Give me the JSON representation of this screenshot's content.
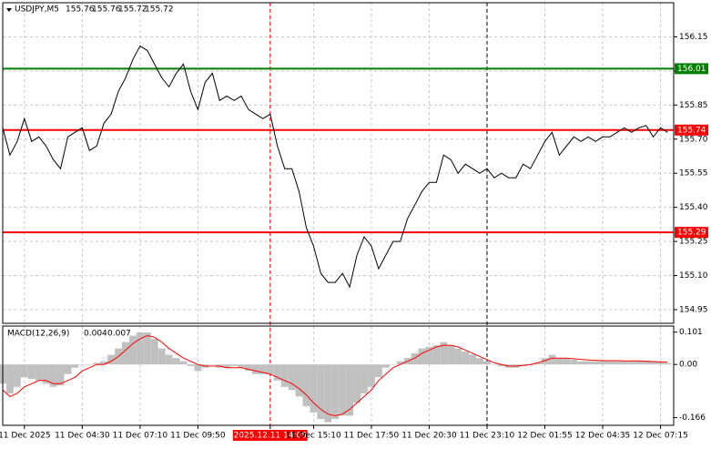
{
  "chart_data": [
    {
      "type": "line",
      "title": "USDJPY,M5",
      "ohlc": [
        155.76,
        155.76,
        155.72,
        155.72
      ],
      "color": "#000000",
      "categories": [
        null,
        null,
        null,
        "11 Dec 2025",
        null,
        null,
        null,
        null,
        null,
        null,
        null,
        "11 Dec 04:30",
        null,
        null,
        null,
        null,
        null,
        null,
        null,
        "11 Dec 07:10",
        null,
        null,
        null,
        null,
        null,
        null,
        null,
        "11 Dec 09:50",
        null,
        null,
        null,
        null,
        null,
        null,
        null,
        null,
        null,
        "2025.12.11 14:05",
        null,
        null,
        null,
        null,
        null,
        "11 Dec 15:10",
        null,
        null,
        null,
        null,
        null,
        null,
        null,
        "11 Dec 17:50",
        null,
        null,
        null,
        null,
        null,
        null,
        null,
        "11 Dec 20:30",
        null,
        null,
        null,
        null,
        null,
        null,
        null,
        "11 Dec 23:10",
        null,
        null,
        null,
        null,
        null,
        null,
        null,
        "12 Dec 01:55",
        null,
        null,
        null,
        null,
        null,
        null,
        null,
        "12 Dec 04:35",
        null,
        null,
        null,
        null,
        null,
        null,
        null,
        "12 Dec 07:15",
        null
      ],
      "values": [
        155.75,
        155.63,
        155.69,
        155.79,
        155.69,
        155.71,
        155.67,
        155.61,
        155.57,
        155.71,
        155.73,
        155.75,
        155.65,
        155.67,
        155.77,
        155.81,
        155.91,
        155.97,
        156.05,
        156.11,
        156.09,
        156.03,
        155.97,
        155.93,
        155.99,
        156.03,
        155.91,
        155.83,
        155.95,
        155.99,
        155.87,
        155.89,
        155.87,
        155.89,
        155.83,
        155.81,
        155.79,
        155.81,
        155.67,
        155.57,
        155.57,
        155.47,
        155.31,
        155.23,
        155.11,
        155.07,
        155.07,
        155.11,
        155.05,
        155.19,
        155.27,
        155.23,
        155.13,
        155.19,
        155.25,
        155.25,
        155.35,
        155.41,
        155.47,
        155.51,
        155.51,
        155.63,
        155.61,
        155.55,
        155.59,
        155.57,
        155.55,
        155.57,
        155.53,
        155.55,
        155.53,
        155.53,
        155.59,
        155.57,
        155.63,
        155.69,
        155.73,
        155.63,
        155.67,
        155.71,
        155.69,
        155.71,
        155.69,
        155.71,
        155.71,
        155.73,
        155.75,
        155.73,
        155.75,
        155.76,
        155.71,
        155.75,
        155.73
      ],
      "ylim": [
        154.89,
        156.3
      ],
      "yticks": [
        156.15,
        {
          "value": 156.0,
          "label": "156.00"
        },
        155.85,
        {
          "value": 155.7,
          "label": "155.70"
        },
        155.55,
        {
          "value": 155.4,
          "label": "155.40"
        },
        155.25,
        {
          "value": 155.1,
          "label": "155.10"
        },
        154.95
      ],
      "grid": true,
      "levels": [
        {
          "value": 156.01,
          "color": "#008000"
        },
        {
          "value": 155.74,
          "color": "#ff0000"
        },
        {
          "value": 155.29,
          "color": "#ff0000"
        }
      ],
      "vlines": [
        {
          "at": "2025.12.11 14:05",
          "color": "#ff0000"
        },
        {
          "at": "11 Dec 23:10",
          "color": "#000000"
        }
      ]
    },
    {
      "type": "macd",
      "title": "MACD(12,26,9)",
      "readout": [
        0.004,
        0.007
      ],
      "series": [
        {
          "name": "MACD",
          "color": "#c0c0c0",
          "values": [
            -0.06,
            -0.09,
            -0.07,
            -0.04,
            -0.045,
            -0.05,
            -0.06,
            -0.07,
            -0.065,
            -0.03,
            -0.01,
            0.0,
            0.0,
            0.005,
            0.01,
            0.03,
            0.05,
            0.07,
            0.09,
            0.1,
            0.1,
            0.08,
            0.05,
            0.03,
            0.02,
            0.01,
            -0.005,
            -0.02,
            -0.01,
            0.0,
            -0.01,
            -0.01,
            -0.005,
            -0.01,
            -0.02,
            -0.03,
            -0.03,
            -0.03,
            -0.05,
            -0.07,
            -0.08,
            -0.1,
            -0.13,
            -0.15,
            -0.17,
            -0.18,
            -0.17,
            -0.16,
            -0.16,
            -0.12,
            -0.09,
            -0.07,
            -0.04,
            -0.01,
            0.0,
            0.01,
            0.02,
            0.035,
            0.05,
            0.055,
            0.06,
            0.07,
            0.06,
            0.05,
            0.04,
            0.03,
            0.02,
            0.01,
            0.0,
            -0.005,
            -0.01,
            -0.01,
            -0.005,
            0.0,
            0.005,
            0.02,
            0.03,
            0.02,
            0.02,
            0.015,
            0.01,
            0.01,
            0.01,
            0.01,
            0.01,
            0.01,
            0.01,
            0.01,
            0.012,
            0.012,
            0.008,
            0.008,
            0.004
          ]
        },
        {
          "name": "Signal",
          "color": "#ff0000",
          "values": [
            -0.08,
            -0.1,
            -0.09,
            -0.07,
            -0.06,
            -0.05,
            -0.05,
            -0.06,
            -0.06,
            -0.05,
            -0.04,
            -0.02,
            -0.01,
            0.0,
            0.0,
            0.01,
            0.025,
            0.045,
            0.065,
            0.08,
            0.09,
            0.085,
            0.07,
            0.05,
            0.035,
            0.02,
            0.01,
            0.0,
            -0.005,
            -0.005,
            -0.005,
            -0.01,
            -0.01,
            -0.01,
            -0.015,
            -0.02,
            -0.025,
            -0.03,
            -0.04,
            -0.05,
            -0.06,
            -0.075,
            -0.095,
            -0.12,
            -0.14,
            -0.155,
            -0.16,
            -0.155,
            -0.14,
            -0.12,
            -0.1,
            -0.08,
            -0.05,
            -0.03,
            -0.01,
            0.0,
            0.01,
            0.02,
            0.035,
            0.045,
            0.055,
            0.06,
            0.06,
            0.055,
            0.045,
            0.035,
            0.025,
            0.015,
            0.005,
            0.0,
            -0.005,
            -0.005,
            -0.003,
            0.0,
            0.005,
            0.012,
            0.02,
            0.02,
            0.02,
            0.018,
            0.016,
            0.014,
            0.013,
            0.012,
            0.012,
            0.012,
            0.011,
            0.011,
            0.011,
            0.01,
            0.009,
            0.008,
            0.007
          ]
        }
      ],
      "ylim": [
        -0.19,
        0.12
      ],
      "yticks": [
        0.101,
        {
          "value": 0,
          "label": "0.00"
        },
        -0.166
      ]
    }
  ]
}
